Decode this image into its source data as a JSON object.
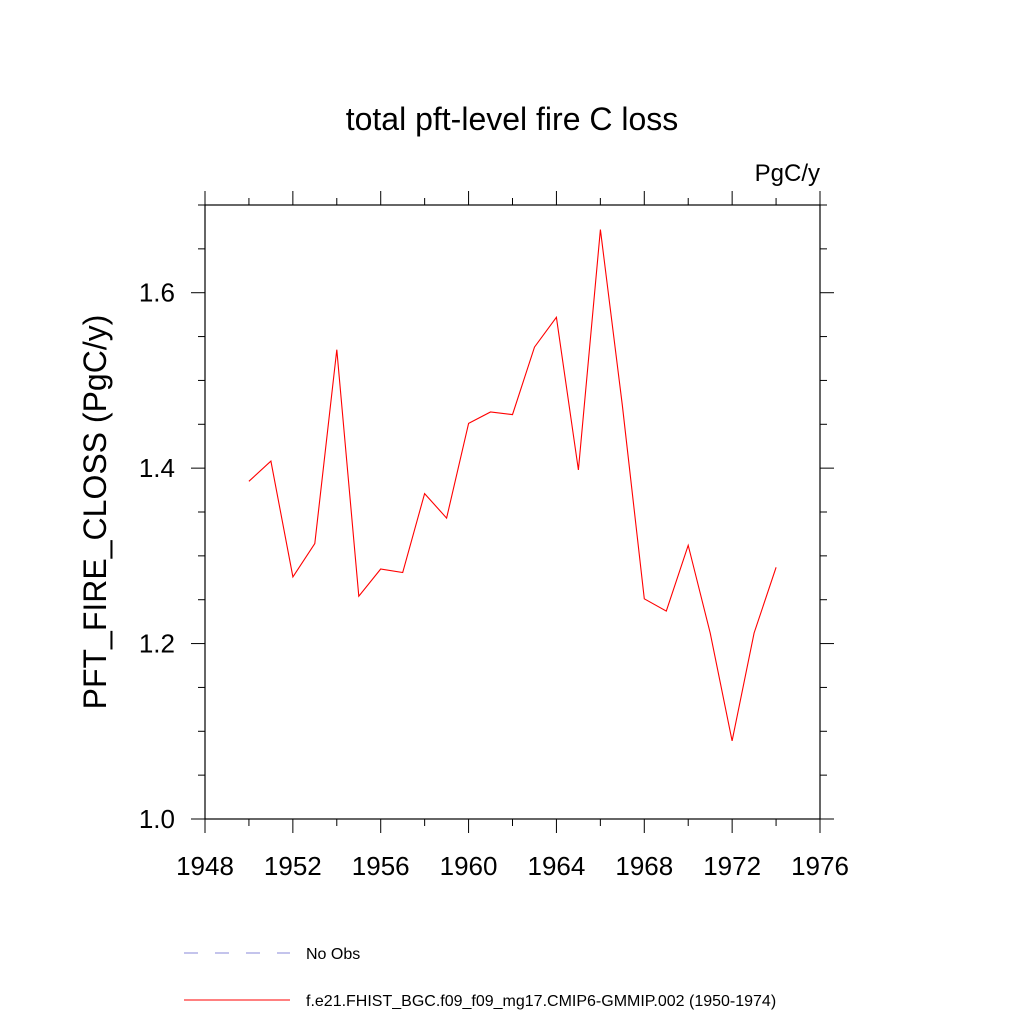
{
  "chart_data": {
    "type": "line",
    "title": "total pft-level fire C loss",
    "units_label": "PgC/y",
    "ylabel": "PFT_FIRE_CLOSS  (PgC/y)",
    "xlabel": "",
    "xlim": [
      1948,
      1976
    ],
    "ylim": [
      1.0,
      1.7
    ],
    "x_major_ticks": [
      1948,
      1952,
      1956,
      1960,
      1964,
      1968,
      1972,
      1976
    ],
    "x_tick_labels": [
      "1948",
      "1952",
      "1956",
      "1960",
      "1964",
      "1968",
      "1972",
      "1976"
    ],
    "y_major_ticks": [
      1.0,
      1.2,
      1.4,
      1.6
    ],
    "y_tick_labels": [
      "1.0",
      "1.2",
      "1.4",
      "1.6"
    ],
    "grid": false,
    "legend_position": "bottom",
    "series": [
      {
        "name": "f.e21.FHIST_BGC.f09_f09_mg17.CMIP6-GMMIP.002 (1950-1974)",
        "color": "#ff0000",
        "dash": "solid",
        "x": [
          1950,
          1951,
          1952,
          1953,
          1954,
          1955,
          1956,
          1957,
          1958,
          1959,
          1960,
          1961,
          1962,
          1963,
          1964,
          1965,
          1966,
          1967,
          1968,
          1969,
          1970,
          1971,
          1972,
          1973,
          1974
        ],
        "y": [
          1.385,
          1.408,
          1.276,
          1.314,
          1.535,
          1.254,
          1.285,
          1.281,
          1.371,
          1.343,
          1.451,
          1.464,
          1.461,
          1.538,
          1.572,
          1.398,
          1.672,
          1.472,
          1.251,
          1.237,
          1.312,
          1.212,
          1.089,
          1.212,
          1.287
        ]
      }
    ],
    "legend": [
      {
        "label": "No Obs",
        "color": "#8a8ad8",
        "dash": "dashed"
      },
      {
        "label": "f.e21.FHIST_BGC.f09_f09_mg17.CMIP6-GMMIP.002 (1950-1974)",
        "color": "#ff0000",
        "dash": "solid"
      }
    ]
  }
}
